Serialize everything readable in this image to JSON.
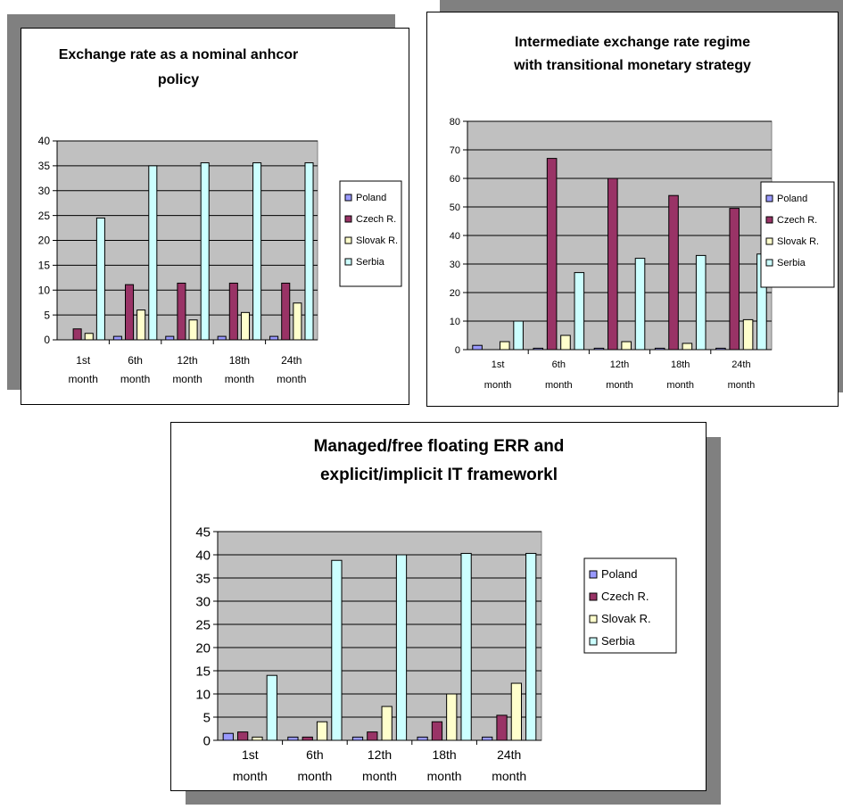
{
  "colors": {
    "plot_bg": "#C0C0C0",
    "series": [
      "#9999FF",
      "#993366",
      "#FFFFCC",
      "#CCFFFF"
    ]
  },
  "chart_data": [
    {
      "type": "bar",
      "title": [
        "Exchange rate as a nominal anhcor",
        "policy"
      ],
      "categories": [
        [
          "1st",
          "month"
        ],
        [
          "6th",
          "month"
        ],
        [
          "12th",
          "month"
        ],
        [
          "18th",
          "month"
        ],
        [
          "24th",
          "month"
        ]
      ],
      "series": [
        {
          "name": "Poland",
          "values": [
            0,
            0.7,
            0.7,
            0.7,
            0.7
          ]
        },
        {
          "name": "Czech R.",
          "values": [
            2.2,
            11.1,
            11.4,
            11.4,
            11.4
          ]
        },
        {
          "name": "Slovak R.",
          "values": [
            1.3,
            6,
            4,
            5.5,
            7.4
          ]
        },
        {
          "name": "Serbia",
          "values": [
            24.5,
            35,
            35.6,
            35.6,
            35.6
          ]
        }
      ],
      "ylim": [
        0,
        40
      ],
      "yticks": [
        0,
        5,
        10,
        15,
        20,
        25,
        30,
        35,
        40
      ],
      "legend": "right",
      "grid": true
    },
    {
      "type": "bar",
      "title": [
        "Intermediate exchange rate regime",
        "with transitional monetary strategy"
      ],
      "categories": [
        [
          "1st",
          "month"
        ],
        [
          "6th",
          "month"
        ],
        [
          "12th",
          "month"
        ],
        [
          "18th",
          "month"
        ],
        [
          "24th",
          "month"
        ]
      ],
      "series": [
        {
          "name": "Poland",
          "values": [
            1.5,
            0.5,
            0.5,
            0.5,
            0.5
          ]
        },
        {
          "name": "Czech R.",
          "values": [
            0,
            67,
            60,
            54,
            49.5
          ]
        },
        {
          "name": "Slovak R.",
          "values": [
            2.8,
            5,
            2.8,
            2.2,
            10.5
          ]
        },
        {
          "name": "Serbia",
          "values": [
            10,
            27,
            32,
            33,
            33.5
          ]
        }
      ],
      "ylim": [
        0,
        80
      ],
      "yticks": [
        0,
        10,
        20,
        30,
        40,
        50,
        60,
        70,
        80
      ],
      "legend": "right",
      "grid": true
    },
    {
      "type": "bar",
      "title": [
        "Managed/free floating ERR and",
        "explicit/implicit IT frameworkl"
      ],
      "categories": [
        [
          "1st",
          "month"
        ],
        [
          "6th",
          "month"
        ],
        [
          "12th",
          "month"
        ],
        [
          "18th",
          "month"
        ],
        [
          "24th",
          "month"
        ]
      ],
      "series": [
        {
          "name": "Poland",
          "values": [
            1.5,
            0.7,
            0.7,
            0.7,
            0.7
          ]
        },
        {
          "name": "Czech R.",
          "values": [
            1.8,
            0.7,
            1.8,
            4,
            5.4
          ]
        },
        {
          "name": "Slovak R.",
          "values": [
            0.7,
            4,
            7.3,
            10,
            12.3
          ]
        },
        {
          "name": "Serbia",
          "values": [
            14,
            38.8,
            40,
            40.3,
            40.3
          ]
        }
      ],
      "ylim": [
        0,
        45
      ],
      "yticks": [
        0,
        5,
        10,
        15,
        20,
        25,
        30,
        35,
        40,
        45
      ],
      "legend": "right",
      "grid": true
    }
  ]
}
